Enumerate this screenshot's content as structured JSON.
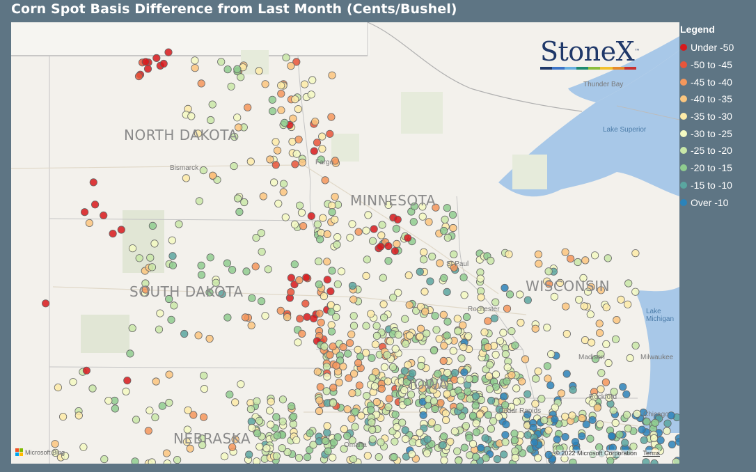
{
  "title": "Corn Spot Basis Difference from Last Month (Cents/Bushel)",
  "legend": {
    "title": "Legend",
    "items": [
      {
        "label": "Under -50",
        "color": "#d7191c"
      },
      {
        "label": "-50 to -45",
        "color": "#e8553a"
      },
      {
        "label": "-45 to -40",
        "color": "#f4975c"
      },
      {
        "label": "-40 to -35",
        "color": "#fbc67f"
      },
      {
        "label": "-35 to -30",
        "color": "#fdeba8"
      },
      {
        "label": "-30 to -25",
        "color": "#f3f9c2"
      },
      {
        "label": "-25 to -20",
        "color": "#c9e8a8"
      },
      {
        "label": "-20 to -15",
        "color": "#8fcc8f"
      },
      {
        "label": "-15 to -10",
        "color": "#5aa6a0"
      },
      {
        "label": "Over -10",
        "color": "#2b83ba"
      }
    ]
  },
  "logo": {
    "text": "StoneX",
    "tm": "™",
    "bar_colors": [
      "#1f3869",
      "#3d74c7",
      "#69b0e0",
      "#1f8a70",
      "#8bbd3c",
      "#f2c12e",
      "#e78a2a",
      "#c8302e"
    ]
  },
  "states": [
    {
      "label": "NORTH DAKOTA"
    },
    {
      "label": "SOUTH DAKOTA"
    },
    {
      "label": "MINNESOTA"
    },
    {
      "label": "WISCONSIN"
    },
    {
      "label": "NEBRASKA"
    },
    {
      "label": "IOWA"
    }
  ],
  "cities": [
    {
      "label": "Bismarck"
    },
    {
      "label": "Fargo"
    },
    {
      "label": "St Paul"
    },
    {
      "label": "Rochester"
    },
    {
      "label": "Madison"
    },
    {
      "label": "Milwaukee"
    },
    {
      "label": "Rockford"
    },
    {
      "label": "Chicago"
    },
    {
      "label": "Cedar Rapids"
    },
    {
      "label": "Omaha"
    },
    {
      "label": "Thunder Bay"
    }
  ],
  "water": [
    {
      "label": "Lake Superior"
    },
    {
      "label": "Lake Michigan"
    }
  ],
  "footer": {
    "ms_label": "Microsoft Bing",
    "copyright": "© 2022 Microsoft Corporation",
    "terms": "Terms"
  }
}
